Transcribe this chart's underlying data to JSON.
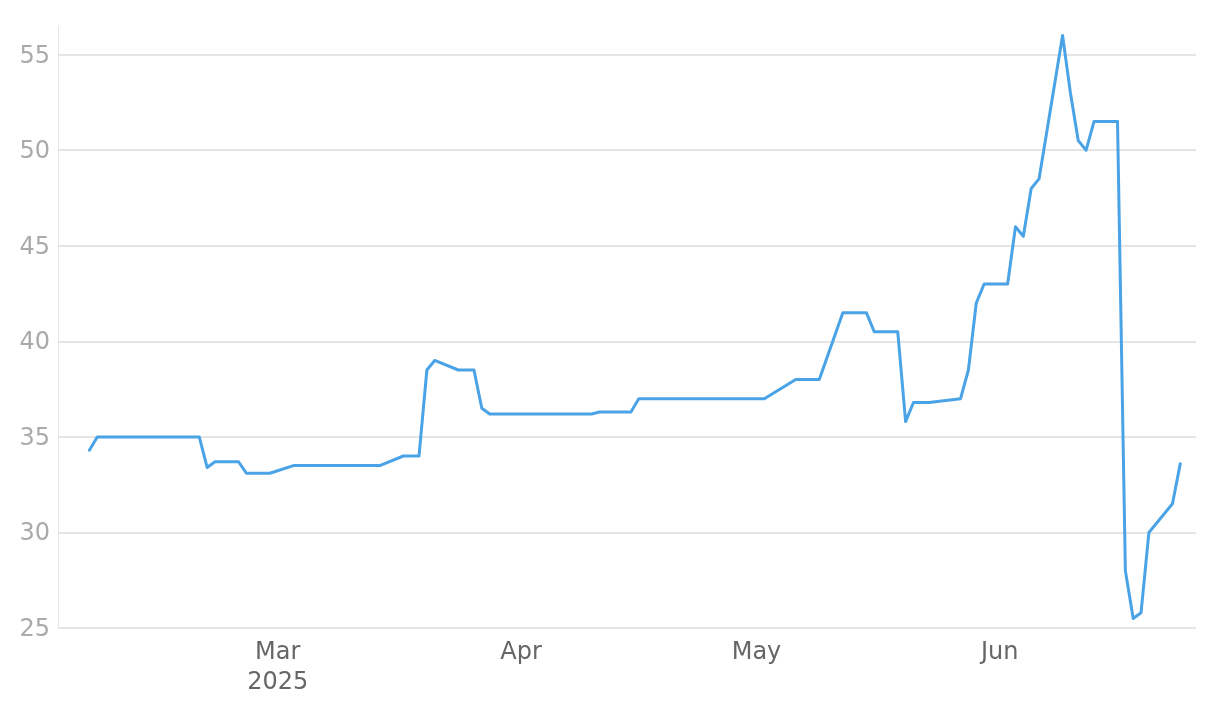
{
  "chart_data": {
    "type": "line",
    "x": [
      "2025-02-05",
      "2025-02-06",
      "2025-02-19",
      "2025-02-20",
      "2025-02-21",
      "2025-02-24",
      "2025-02-25",
      "2025-02-28",
      "2025-03-03",
      "2025-03-14",
      "2025-03-17",
      "2025-03-19",
      "2025-03-20",
      "2025-03-21",
      "2025-03-24",
      "2025-03-26",
      "2025-03-27",
      "2025-03-28",
      "2025-04-10",
      "2025-04-11",
      "2025-04-15",
      "2025-04-16",
      "2025-05-02",
      "2025-05-06",
      "2025-05-09",
      "2025-05-12",
      "2025-05-15",
      "2025-05-16",
      "2025-05-19",
      "2025-05-20",
      "2025-05-21",
      "2025-05-23",
      "2025-05-27",
      "2025-05-28",
      "2025-05-29",
      "2025-05-30",
      "2025-06-02",
      "2025-06-03",
      "2025-06-04",
      "2025-06-05",
      "2025-06-06",
      "2025-06-09",
      "2025-06-10",
      "2025-06-11",
      "2025-06-12",
      "2025-06-13",
      "2025-06-16",
      "2025-06-17",
      "2025-06-18",
      "2025-06-19",
      "2025-06-20",
      "2025-06-23",
      "2025-06-24"
    ],
    "series": [
      {
        "color": "#4aa3e6",
        "values": [
          34.3,
          35,
          35,
          33.4,
          33.7,
          33.7,
          33.1,
          33.1,
          33.5,
          33.5,
          34,
          34,
          38.5,
          39,
          38.5,
          38.5,
          36.5,
          36.2,
          36.2,
          36.3,
          36.3,
          37,
          37,
          38,
          38,
          41.5,
          41.5,
          40.5,
          40.5,
          35.8,
          36.8,
          36.8,
          37,
          38.5,
          42,
          43,
          43,
          46,
          45.5,
          48,
          48.5,
          56,
          53,
          50.5,
          50,
          51.5,
          51.5,
          28,
          25.5,
          25.8,
          30,
          31.5,
          33.6
        ]
      }
    ],
    "xlim": [
      "2025-02-01",
      "2025-06-26"
    ],
    "xticks": [
      {
        "value": "2025-03-01",
        "label": "Mar\n2025"
      },
      {
        "value": "2025-04-01",
        "label": "Apr"
      },
      {
        "value": "2025-05-01",
        "label": "May"
      },
      {
        "value": "2025-06-01",
        "label": "Jun"
      }
    ],
    "ylim": [
      25,
      56.5
    ],
    "yticks": [
      25,
      30,
      35,
      40,
      45,
      50,
      55
    ],
    "grid": "y",
    "marker": "none",
    "line_style": "solid"
  }
}
